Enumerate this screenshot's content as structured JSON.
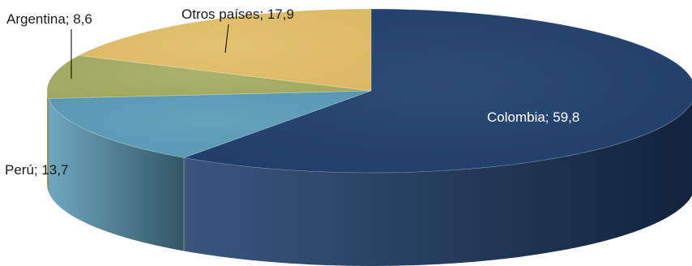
{
  "chart_data": {
    "type": "pie",
    "style": "3d",
    "slices": [
      {
        "label": "Colombia",
        "value": 59.8,
        "display": "Colombia; 59,8",
        "color": "#1f3f6c",
        "label_color": "#ffffff"
      },
      {
        "label": "Perú",
        "value": 13.7,
        "display": "Perú; 13,7",
        "color": "#5b9cb8",
        "label_color": "#1a1a1a"
      },
      {
        "label": "Argentina",
        "value": 8.6,
        "display": "Argentina; 8,6",
        "color": "#a6ae62",
        "label_color": "#1a1a1a"
      },
      {
        "label": "Otros países",
        "value": 17.9,
        "display": "Otros países; 17,9",
        "color": "#e2bf67",
        "label_color": "#1a1a1a"
      }
    ],
    "title": "",
    "legend": "none"
  }
}
